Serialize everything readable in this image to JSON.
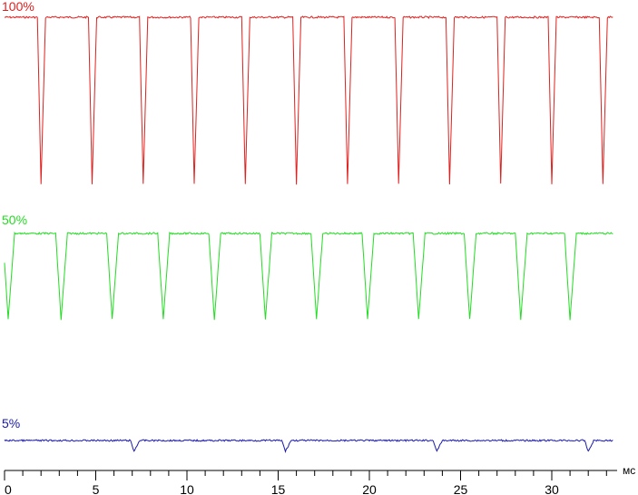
{
  "chart_data": {
    "type": "line",
    "xlabel": "мс",
    "xlim": [
      0,
      34
    ],
    "xticks": [
      0,
      5,
      10,
      15,
      20,
      25,
      30
    ],
    "minor_tick_step": 1,
    "grid": false,
    "period_ms": 2.8,
    "series": [
      {
        "name": "100%",
        "color": "#e0201e",
        "high_level": "top",
        "low_level": "bottom",
        "dip_centers_ms": [
          2.0,
          4.8,
          7.6,
          10.4,
          13.2,
          16.0,
          18.8,
          21.6,
          24.4,
          27.2,
          30.0,
          32.8
        ],
        "start_ms": 0.0,
        "end_ms": 33.4
      },
      {
        "name": "50%",
        "color": "#22dd22",
        "high_level": "top",
        "low_level": "bottom",
        "dip_centers_ms": [
          0.2,
          3.1,
          5.9,
          8.7,
          11.5,
          14.3,
          17.1,
          19.9,
          22.7,
          25.5,
          28.3,
          31.0
        ],
        "start_ms": 0.0,
        "end_ms": 33.4
      },
      {
        "name": "5%",
        "color": "#1a1aaa",
        "high_level": "baseline",
        "low_level": "small-dip",
        "dip_centers_ms": [
          7.1,
          15.4,
          23.7,
          32.0
        ],
        "start_ms": 0.0,
        "end_ms": 33.4
      }
    ]
  }
}
